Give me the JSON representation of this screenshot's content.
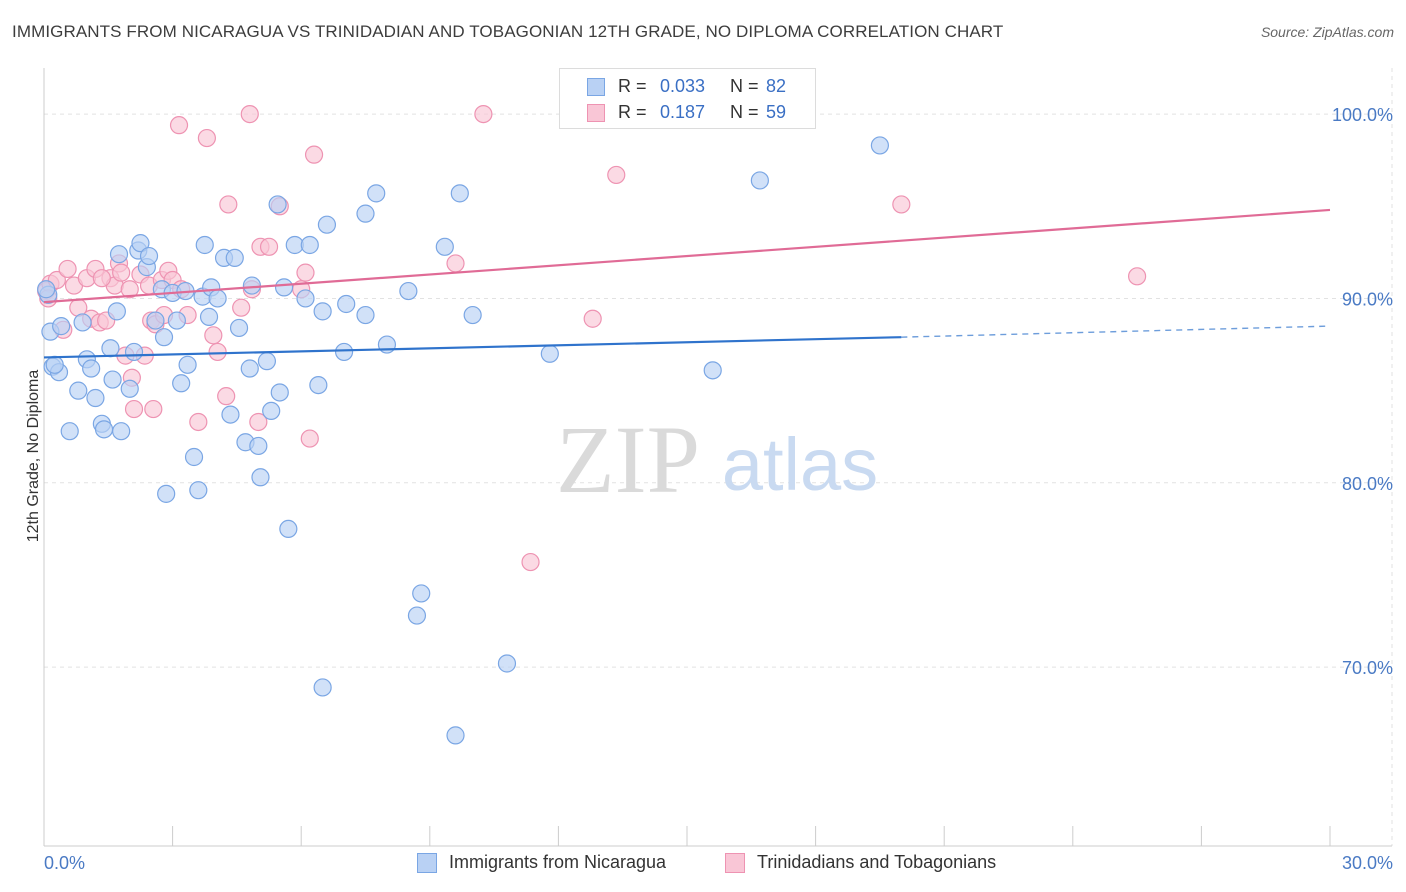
{
  "title": "IMMIGRANTS FROM NICARAGUA VS TRINIDADIAN AND TOBAGONIAN 12TH GRADE, NO DIPLOMA CORRELATION CHART",
  "source": "Source: ZipAtlas.com",
  "watermark": {
    "zip": "ZIP",
    "atlas": "atlas"
  },
  "legend": {
    "rows": [
      {
        "r_label": "R =",
        "r_value": "0.033",
        "n_label": "N =",
        "n_value": "82"
      },
      {
        "r_label": "R =",
        "r_value": "0.187",
        "n_label": "N =",
        "n_value": "59"
      }
    ]
  },
  "colors": {
    "blue_fill": "#b9d1f4",
    "blue_stroke": "#7aa6e4",
    "blue_line": "#2f73cc",
    "pink_fill": "#f9c6d6",
    "pink_stroke": "#ee93b2",
    "pink_line": "#e06b96",
    "tick_text": "#4a7ac4",
    "grid": "#e2e2e2"
  },
  "chart_data": {
    "type": "scatter",
    "title": "IMMIGRANTS FROM NICARAGUA VS TRINIDADIAN AND TOBAGONIAN 12TH GRADE, NO DIPLOMA CORRELATION CHART",
    "xlabel": "",
    "ylabel": "12th Grade, No Diploma",
    "xlim": [
      0,
      30
    ],
    "ylim": [
      60.3,
      102.5
    ],
    "x_tick_labels": [
      {
        "value": 0,
        "label": "0.0%"
      },
      {
        "value": 30,
        "label": "30.0%"
      }
    ],
    "y_ticks": [
      {
        "value": 100,
        "label": "100.0%"
      },
      {
        "value": 90,
        "label": "90.0%"
      },
      {
        "value": 80,
        "label": "80.0%"
      },
      {
        "value": 70,
        "label": "70.0%"
      }
    ],
    "grid": true,
    "legend_placement": "top-center",
    "series": [
      {
        "name": "Immigrants from Nicaragua",
        "color": "#7aa6e4",
        "trend": {
          "x0": 0,
          "y0": 86.8,
          "x1": 20,
          "y1": 87.9,
          "dashed_to_x": 30,
          "dashed_to_y": 88.5
        },
        "points": [
          [
            0.1,
            90.2
          ],
          [
            0.15,
            88.2
          ],
          [
            0.2,
            86.3
          ],
          [
            0.35,
            86.0
          ],
          [
            0.4,
            88.5
          ],
          [
            0.6,
            82.8
          ],
          [
            0.8,
            85.0
          ],
          [
            0.9,
            88.7
          ],
          [
            1.0,
            86.7
          ],
          [
            1.1,
            86.2
          ],
          [
            1.2,
            84.6
          ],
          [
            1.35,
            83.2
          ],
          [
            1.4,
            82.9
          ],
          [
            1.55,
            87.3
          ],
          [
            1.6,
            85.6
          ],
          [
            1.7,
            89.3
          ],
          [
            1.75,
            92.4
          ],
          [
            1.8,
            82.8
          ],
          [
            2.0,
            85.1
          ],
          [
            2.1,
            87.1
          ],
          [
            2.2,
            92.6
          ],
          [
            2.25,
            93.0
          ],
          [
            2.4,
            91.7
          ],
          [
            2.45,
            92.3
          ],
          [
            2.6,
            88.8
          ],
          [
            2.75,
            90.5
          ],
          [
            2.8,
            87.9
          ],
          [
            2.85,
            79.4
          ],
          [
            3.0,
            90.3
          ],
          [
            3.1,
            88.8
          ],
          [
            3.2,
            85.4
          ],
          [
            3.3,
            90.4
          ],
          [
            3.35,
            86.4
          ],
          [
            3.5,
            81.4
          ],
          [
            3.6,
            79.6
          ],
          [
            3.7,
            90.1
          ],
          [
            3.75,
            92.9
          ],
          [
            3.85,
            89.0
          ],
          [
            3.9,
            90.6
          ],
          [
            4.05,
            90.0
          ],
          [
            4.2,
            92.2
          ],
          [
            4.35,
            83.7
          ],
          [
            4.45,
            92.2
          ],
          [
            4.55,
            88.4
          ],
          [
            4.7,
            82.2
          ],
          [
            4.8,
            86.2
          ],
          [
            4.85,
            90.7
          ],
          [
            5.0,
            82.0
          ],
          [
            5.05,
            80.3
          ],
          [
            5.2,
            86.6
          ],
          [
            5.3,
            83.9
          ],
          [
            5.45,
            95.1
          ],
          [
            5.5,
            84.9
          ],
          [
            5.6,
            90.6
          ],
          [
            5.7,
            77.5
          ],
          [
            5.85,
            92.9
          ],
          [
            6.2,
            92.9
          ],
          [
            6.1,
            90.0
          ],
          [
            6.4,
            85.3
          ],
          [
            6.5,
            89.3
          ],
          [
            6.6,
            94.0
          ],
          [
            6.5,
            68.9
          ],
          [
            7.0,
            87.1
          ],
          [
            7.05,
            89.7
          ],
          [
            7.5,
            89.1
          ],
          [
            7.75,
            95.7
          ],
          [
            7.5,
            94.6
          ],
          [
            8.0,
            87.5
          ],
          [
            8.5,
            90.4
          ],
          [
            8.8,
            74.0
          ],
          [
            8.7,
            72.8
          ],
          [
            9.35,
            92.8
          ],
          [
            9.7,
            95.7
          ],
          [
            9.6,
            66.3
          ],
          [
            10.0,
            89.1
          ],
          [
            10.8,
            70.2
          ],
          [
            11.8,
            87.0
          ],
          [
            15.6,
            86.1
          ],
          [
            16.7,
            96.4
          ],
          [
            19.5,
            98.3
          ],
          [
            0.05,
            90.5
          ],
          [
            0.25,
            86.4
          ]
        ]
      },
      {
        "name": "Trinidadians and Tobagonians",
        "color": "#ee93b2",
        "trend": {
          "x0": 0,
          "y0": 89.8,
          "x1": 30,
          "y1": 94.8
        },
        "points": [
          [
            0.05,
            90.4
          ],
          [
            0.15,
            90.8
          ],
          [
            0.3,
            91.0
          ],
          [
            0.45,
            88.3
          ],
          [
            0.55,
            91.6
          ],
          [
            0.7,
            90.7
          ],
          [
            0.8,
            89.5
          ],
          [
            1.0,
            91.1
          ],
          [
            1.1,
            88.9
          ],
          [
            1.2,
            91.6
          ],
          [
            1.3,
            88.7
          ],
          [
            1.45,
            88.8
          ],
          [
            1.55,
            91.1
          ],
          [
            1.65,
            90.7
          ],
          [
            1.75,
            91.9
          ],
          [
            1.8,
            91.4
          ],
          [
            1.9,
            86.9
          ],
          [
            2.0,
            90.5
          ],
          [
            2.05,
            85.7
          ],
          [
            2.1,
            84.0
          ],
          [
            2.25,
            91.3
          ],
          [
            2.35,
            86.9
          ],
          [
            2.45,
            90.7
          ],
          [
            2.5,
            88.8
          ],
          [
            2.55,
            84.0
          ],
          [
            2.6,
            88.6
          ],
          [
            2.75,
            91.0
          ],
          [
            2.8,
            89.1
          ],
          [
            2.9,
            91.5
          ],
          [
            3.0,
            91.0
          ],
          [
            3.15,
            99.4
          ],
          [
            3.2,
            90.5
          ],
          [
            3.35,
            89.1
          ],
          [
            3.6,
            83.3
          ],
          [
            3.8,
            98.7
          ],
          [
            3.95,
            88.0
          ],
          [
            4.05,
            87.1
          ],
          [
            4.25,
            84.7
          ],
          [
            4.3,
            95.1
          ],
          [
            4.6,
            89.5
          ],
          [
            4.8,
            100.0
          ],
          [
            4.85,
            90.5
          ],
          [
            5.0,
            83.3
          ],
          [
            5.05,
            92.8
          ],
          [
            5.25,
            92.8
          ],
          [
            5.5,
            95.0
          ],
          [
            6.0,
            90.5
          ],
          [
            6.1,
            91.4
          ],
          [
            6.3,
            97.8
          ],
          [
            6.2,
            82.4
          ],
          [
            9.6,
            91.9
          ],
          [
            10.25,
            100.0
          ],
          [
            11.35,
            75.7
          ],
          [
            12.8,
            88.9
          ],
          [
            13.35,
            96.7
          ],
          [
            20.0,
            95.1
          ],
          [
            25.5,
            91.2
          ],
          [
            0.1,
            90.0
          ],
          [
            1.35,
            91.1
          ]
        ]
      }
    ]
  },
  "bottom_legend": [
    {
      "label": "Immigrants from Nicaragua"
    },
    {
      "label": "Trinidadians and Tobagonians"
    }
  ]
}
